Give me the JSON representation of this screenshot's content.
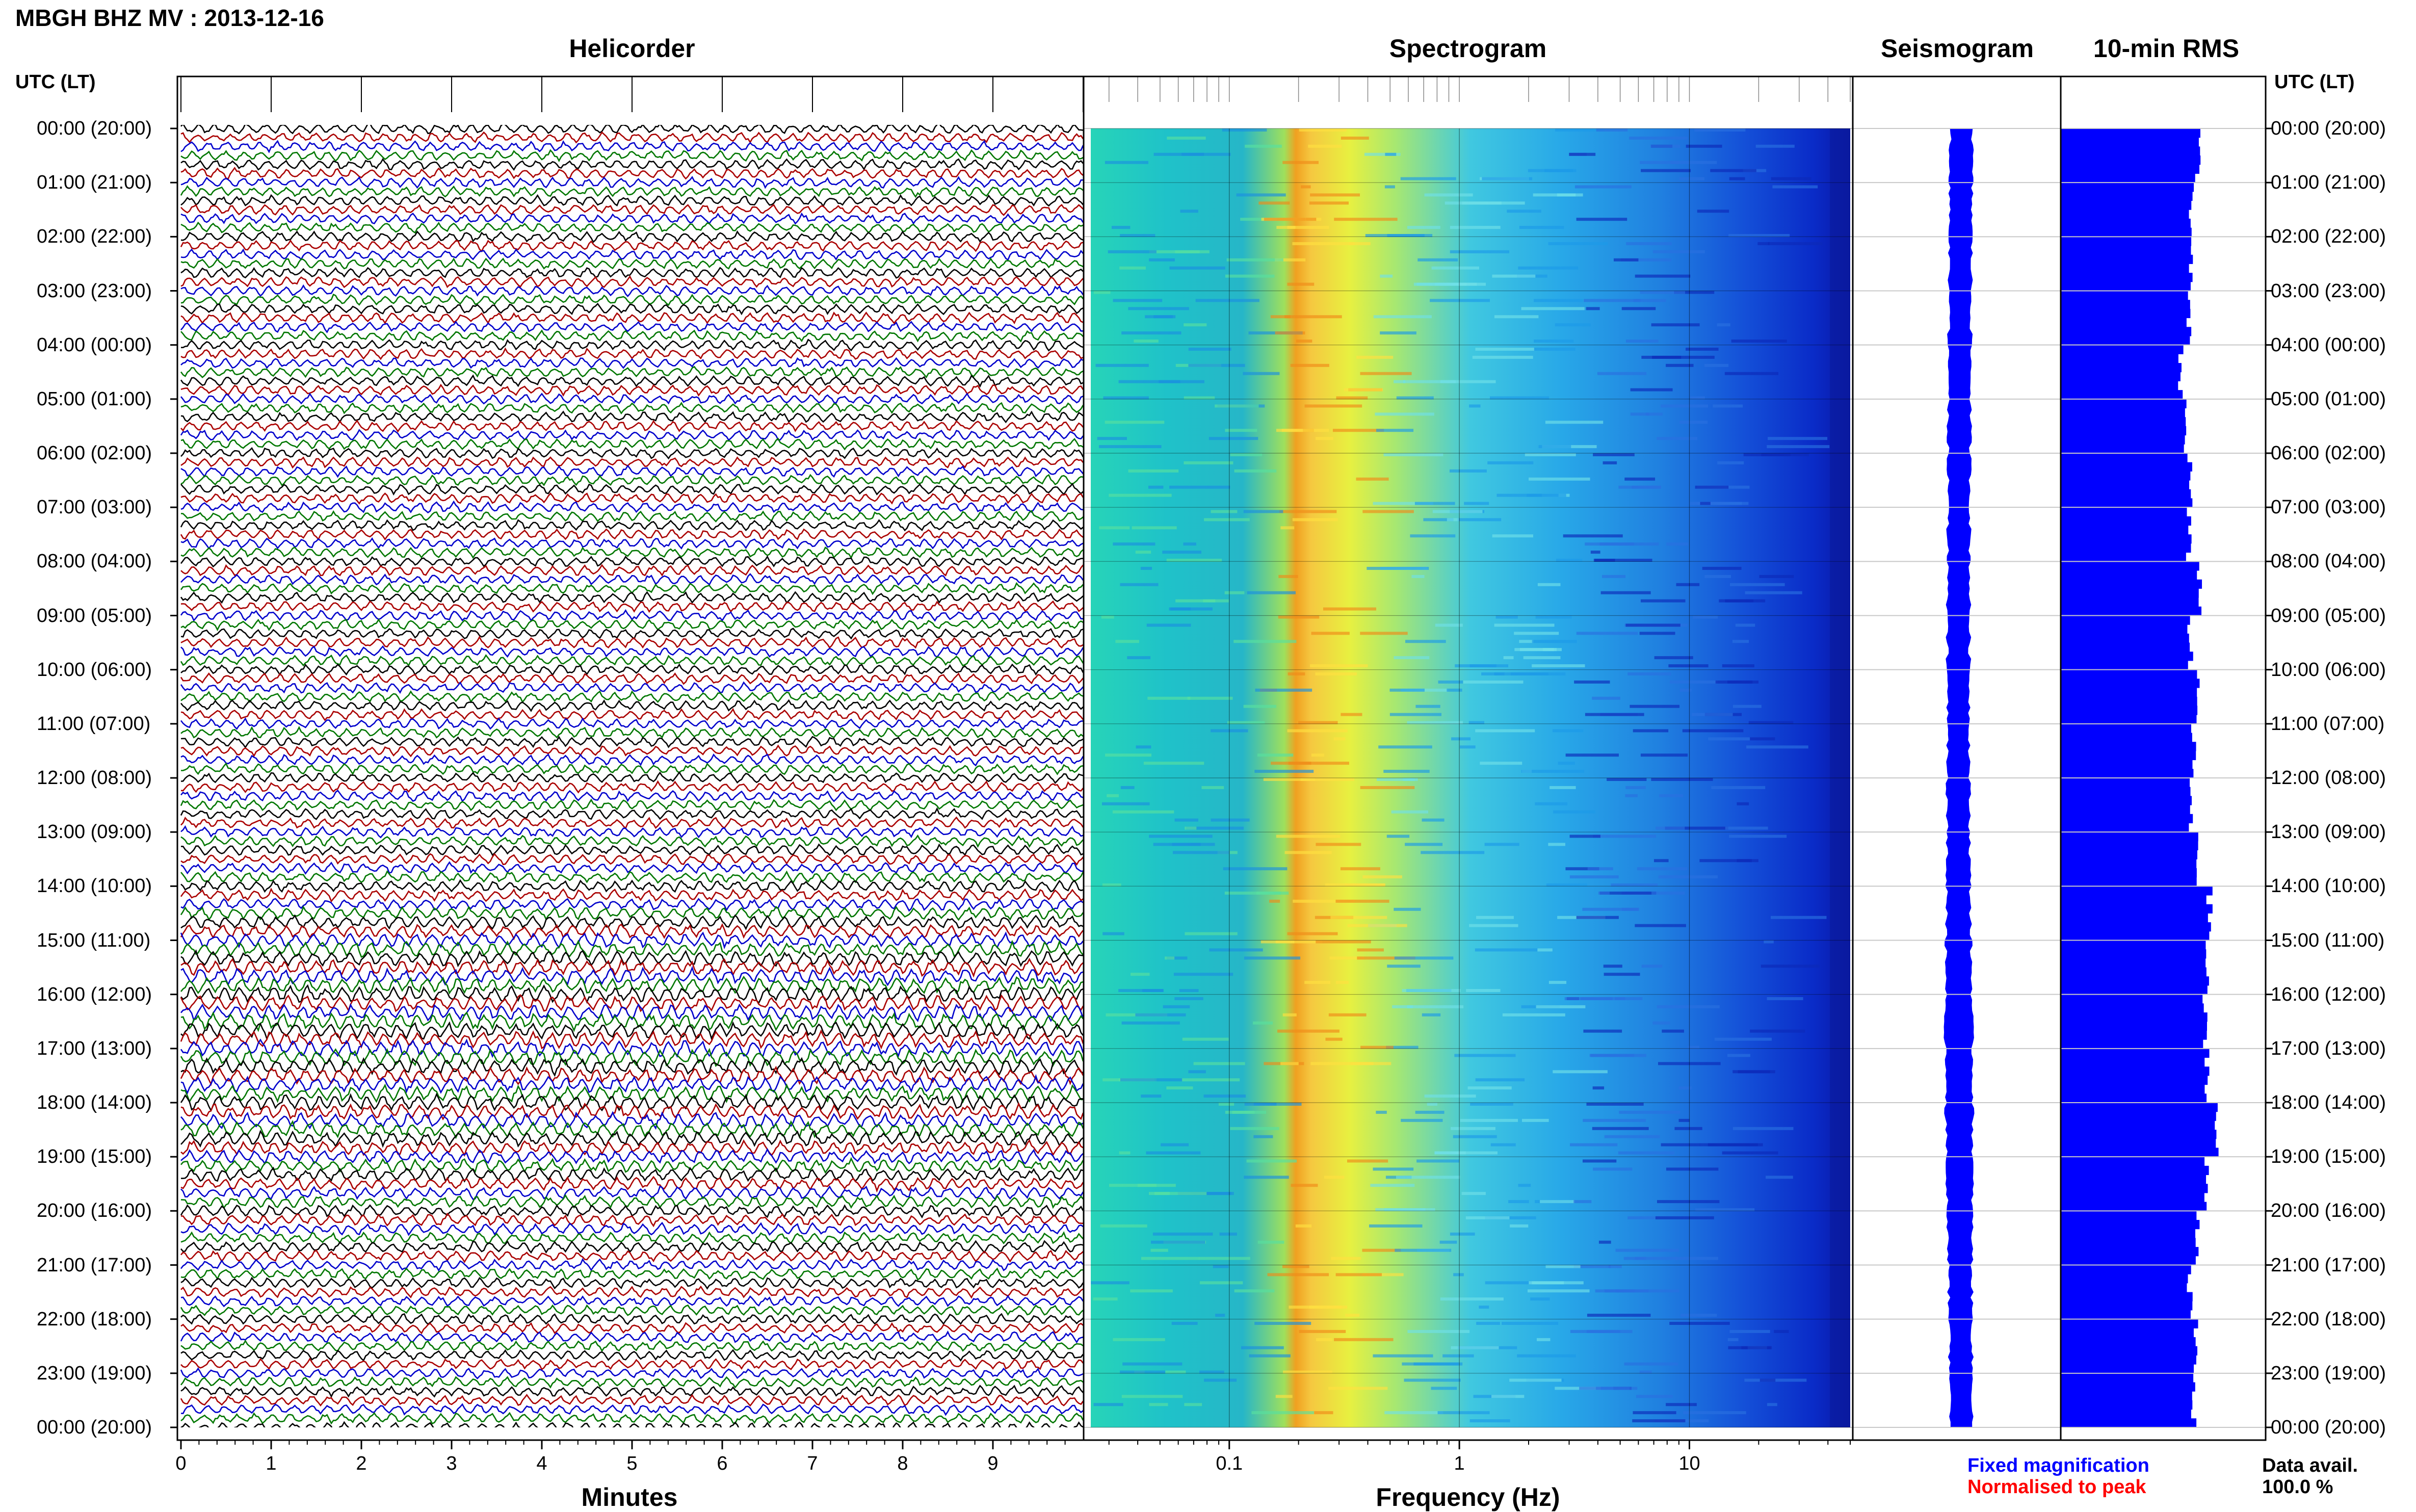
{
  "title": "MBGH BHZ MV : 2013-12-16",
  "panels": {
    "helicorder": "Helicorder",
    "spectrogram": "Spectrogram",
    "seismogram": "Seismogram",
    "rms": "10-min RMS"
  },
  "time_axis_label": "UTC (LT)",
  "time_labels": [
    "00:00 (20:00)",
    "01:00 (21:00)",
    "02:00 (22:00)",
    "03:00 (23:00)",
    "04:00 (00:00)",
    "05:00 (01:00)",
    "06:00 (02:00)",
    "07:00 (03:00)",
    "08:00 (04:00)",
    "09:00 (05:00)",
    "10:00 (06:00)",
    "11:00 (07:00)",
    "12:00 (08:00)",
    "13:00 (09:00)",
    "14:00 (10:00)",
    "15:00 (11:00)",
    "16:00 (12:00)",
    "17:00 (13:00)",
    "18:00 (14:00)",
    "19:00 (15:00)",
    "20:00 (16:00)",
    "21:00 (17:00)",
    "22:00 (18:00)",
    "23:00 (19:00)",
    "00:00 (20:00)"
  ],
  "helicorder_xticks": [
    "0",
    "1",
    "2",
    "3",
    "4",
    "5",
    "6",
    "7",
    "8",
    "9"
  ],
  "helicorder_xlabel": "Minutes",
  "spectrogram_xticks": [
    "0.1",
    "1",
    "10"
  ],
  "spectrogram_xlabel": "Frequency (Hz)",
  "legend": {
    "fixed": "Fixed magnification",
    "normalised": "Normalised to peak",
    "fixed_color": "#0000ff",
    "normalised_color": "#ff0000"
  },
  "data_avail_label": "Data avail.",
  "data_avail_value": "100.0 %",
  "colors": {
    "trace_cycle": [
      "#000000",
      "#aa0000",
      "#0000cc",
      "#007700"
    ],
    "rms_fill": "#0000ff",
    "seismogram_fill": "#0000ff"
  },
  "chart_data": [
    {
      "type": "line",
      "panel": "Helicorder",
      "xlabel": "Minutes",
      "xlim": [
        0,
        10
      ],
      "ylim": [
        0,
        24
      ],
      "rows_per_hour": 6,
      "rows": 145
    },
    {
      "type": "heatmap",
      "panel": "Spectrogram",
      "xlabel": "Frequency (Hz)",
      "x_scale": "log",
      "xlim": [
        0.025,
        50
      ],
      "ylim": [
        0,
        24
      ],
      "peak_band_hz": [
        0.18,
        0.4
      ]
    },
    {
      "type": "area",
      "panel": "Seismogram",
      "ylim": [
        0,
        24
      ]
    },
    {
      "type": "bar",
      "panel": "10-min RMS",
      "orientation": "horizontal",
      "hours": [
        0,
        1,
        2,
        3,
        4,
        5,
        6,
        7,
        8,
        9,
        10,
        11,
        12,
        13,
        14,
        15,
        16,
        17,
        18,
        19,
        20,
        21,
        22,
        23
      ],
      "values": [
        0.85,
        0.81,
        0.8,
        0.79,
        0.74,
        0.77,
        0.8,
        0.79,
        0.86,
        0.8,
        0.84,
        0.82,
        0.8,
        0.85,
        0.92,
        0.9,
        0.89,
        0.91,
        0.96,
        0.9,
        0.85,
        0.8,
        0.83,
        0.82
      ],
      "xlim": [
        0,
        1
      ],
      "ylim": [
        0,
        24
      ]
    }
  ]
}
